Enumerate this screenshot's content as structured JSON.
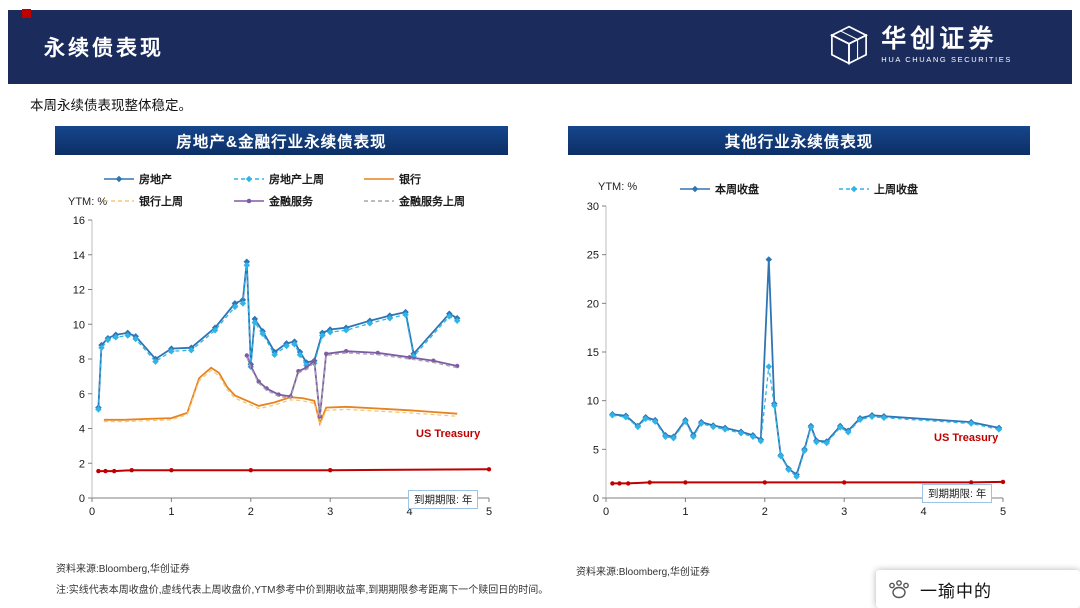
{
  "header": {
    "title": "永续债表现",
    "logo_cn": "华创证券",
    "logo_en": "HUA CHUANG SECURITIES"
  },
  "subtitle": "本周永续债表现整体稳定。",
  "panels": [
    {
      "title": "房地产&金融行业永续债表现",
      "source": "资料来源:Bloomberg,华创证券"
    },
    {
      "title": "其他行业永续债表现",
      "source": "资料来源:Bloomberg,华创证券"
    }
  ],
  "note": "注:实线代表本周收盘价,虚线代表上周收盘价,YTM参考中价到期收益率,到期期限参考距离下一个赎回日的时间。",
  "badge": {
    "name": "一瑜中的"
  },
  "colors": {
    "header_bg": "#1b2b5c",
    "panel_bg": "#0f3a7d",
    "accent_red": "#c00000",
    "this_week_blue": "#2e75b6",
    "last_week_cyan": "#30b4e8",
    "bank_orange": "#e8821e",
    "bank_last_yellow": "#f5c878",
    "finserv_purple": "#7d5ba6",
    "finserv_last_gray": "#a6a6a6"
  },
  "chart_data": [
    {
      "type": "line",
      "title": "房地产&金融行业永续债表现",
      "ylabel": "YTM: %",
      "xlabel": "到期期限: 年",
      "annotation": "US Treasury",
      "xlim": [
        0,
        5
      ],
      "ylim": [
        0,
        16
      ],
      "xticks": [
        0,
        1,
        2,
        3,
        4,
        5
      ],
      "yticks": [
        0,
        2,
        4,
        6,
        8,
        10,
        12,
        14,
        16
      ],
      "legend_position": "top",
      "grid": false,
      "series": [
        {
          "name": "房地产",
          "color": "#2e75b6",
          "dash": false,
          "marker": "diamond",
          "width": 1.8,
          "points": [
            [
              0.08,
              5.2
            ],
            [
              0.12,
              8.8
            ],
            [
              0.2,
              9.2
            ],
            [
              0.3,
              9.4
            ],
            [
              0.45,
              9.5
            ],
            [
              0.55,
              9.3
            ],
            [
              0.8,
              8.0
            ],
            [
              1.0,
              8.6
            ],
            [
              1.25,
              8.65
            ],
            [
              1.55,
              9.8
            ],
            [
              1.8,
              11.2
            ],
            [
              1.9,
              11.4
            ],
            [
              1.95,
              13.6
            ],
            [
              2.0,
              7.7
            ],
            [
              2.05,
              10.3
            ],
            [
              2.15,
              9.6
            ],
            [
              2.3,
              8.4
            ],
            [
              2.45,
              8.9
            ],
            [
              2.55,
              9.0
            ],
            [
              2.62,
              8.4
            ],
            [
              2.7,
              7.8
            ],
            [
              2.8,
              7.9
            ],
            [
              2.9,
              9.5
            ],
            [
              3.0,
              9.7
            ],
            [
              3.2,
              9.8
            ],
            [
              3.5,
              10.2
            ],
            [
              3.75,
              10.5
            ],
            [
              3.95,
              10.7
            ],
            [
              4.05,
              8.3
            ],
            [
              4.5,
              10.6
            ],
            [
              4.6,
              10.35
            ]
          ]
        },
        {
          "name": "房地产上周",
          "color": "#30b4e8",
          "dash": true,
          "marker": "diamond",
          "width": 1.3,
          "points": [
            [
              0.08,
              5.1
            ],
            [
              0.12,
              8.65
            ],
            [
              0.2,
              9.1
            ],
            [
              0.3,
              9.25
            ],
            [
              0.45,
              9.35
            ],
            [
              0.55,
              9.15
            ],
            [
              0.8,
              7.85
            ],
            [
              1.0,
              8.45
            ],
            [
              1.25,
              8.5
            ],
            [
              1.55,
              9.65
            ],
            [
              1.8,
              11.0
            ],
            [
              1.9,
              11.2
            ],
            [
              1.95,
              13.4
            ],
            [
              2.0,
              7.55
            ],
            [
              2.05,
              10.1
            ],
            [
              2.15,
              9.45
            ],
            [
              2.3,
              8.25
            ],
            [
              2.45,
              8.75
            ],
            [
              2.55,
              8.85
            ],
            [
              2.62,
              8.25
            ],
            [
              2.7,
              7.65
            ],
            [
              2.8,
              7.75
            ],
            [
              2.9,
              9.35
            ],
            [
              3.0,
              9.55
            ],
            [
              3.2,
              9.65
            ],
            [
              3.5,
              10.05
            ],
            [
              3.75,
              10.35
            ],
            [
              3.95,
              10.55
            ],
            [
              4.05,
              8.15
            ],
            [
              4.5,
              10.45
            ],
            [
              4.6,
              10.2
            ]
          ]
        },
        {
          "name": "银行",
          "color": "#e8821e",
          "dash": false,
          "marker": "none",
          "width": 1.8,
          "points": [
            [
              0.15,
              4.5
            ],
            [
              0.4,
              4.5
            ],
            [
              0.7,
              4.55
            ],
            [
              1.0,
              4.6
            ],
            [
              1.2,
              4.9
            ],
            [
              1.35,
              6.9
            ],
            [
              1.5,
              7.5
            ],
            [
              1.6,
              7.2
            ],
            [
              1.7,
              6.4
            ],
            [
              1.8,
              5.9
            ],
            [
              1.95,
              5.6
            ],
            [
              2.1,
              5.3
            ],
            [
              2.3,
              5.5
            ],
            [
              2.5,
              5.8
            ],
            [
              2.65,
              5.75
            ],
            [
              2.8,
              5.6
            ],
            [
              2.87,
              4.3
            ],
            [
              2.95,
              5.2
            ],
            [
              3.2,
              5.25
            ],
            [
              3.6,
              5.15
            ],
            [
              4.0,
              5.05
            ],
            [
              4.3,
              4.95
            ],
            [
              4.6,
              4.85
            ]
          ]
        },
        {
          "name": "银行上周",
          "color": "#f5c878",
          "dash": true,
          "marker": "none",
          "width": 1.3,
          "points": [
            [
              0.15,
              4.4
            ],
            [
              0.4,
              4.4
            ],
            [
              0.7,
              4.45
            ],
            [
              1.0,
              4.5
            ],
            [
              1.2,
              4.8
            ],
            [
              1.35,
              6.75
            ],
            [
              1.5,
              7.35
            ],
            [
              1.6,
              7.05
            ],
            [
              1.7,
              6.25
            ],
            [
              1.8,
              5.75
            ],
            [
              1.95,
              5.45
            ],
            [
              2.1,
              5.15
            ],
            [
              2.3,
              5.35
            ],
            [
              2.5,
              5.65
            ],
            [
              2.65,
              5.6
            ],
            [
              2.8,
              5.45
            ],
            [
              2.87,
              4.2
            ],
            [
              2.95,
              5.05
            ],
            [
              3.2,
              5.1
            ],
            [
              3.6,
              5.0
            ],
            [
              4.0,
              4.9
            ],
            [
              4.3,
              4.8
            ],
            [
              4.6,
              4.7
            ]
          ]
        },
        {
          "name": "金融服务",
          "color": "#7d5ba6",
          "dash": false,
          "marker": "circle",
          "width": 1.8,
          "points": [
            [
              1.95,
              8.2
            ],
            [
              2.0,
              7.6
            ],
            [
              2.1,
              6.7
            ],
            [
              2.2,
              6.3
            ],
            [
              2.35,
              5.95
            ],
            [
              2.5,
              5.85
            ],
            [
              2.6,
              7.3
            ],
            [
              2.7,
              7.5
            ],
            [
              2.8,
              7.9
            ],
            [
              2.87,
              4.7
            ],
            [
              2.95,
              8.3
            ],
            [
              3.2,
              8.45
            ],
            [
              3.6,
              8.35
            ],
            [
              4.0,
              8.1
            ],
            [
              4.3,
              7.9
            ],
            [
              4.6,
              7.6
            ]
          ]
        },
        {
          "name": "金融服务上周",
          "color": "#a6a6a6",
          "dash": true,
          "marker": "none",
          "width": 1.3,
          "points": [
            [
              1.95,
              8.1
            ],
            [
              2.0,
              7.5
            ],
            [
              2.1,
              6.6
            ],
            [
              2.2,
              6.2
            ],
            [
              2.35,
              5.85
            ],
            [
              2.5,
              5.75
            ],
            [
              2.6,
              7.2
            ],
            [
              2.7,
              7.4
            ],
            [
              2.8,
              7.8
            ],
            [
              2.87,
              4.6
            ],
            [
              2.95,
              8.2
            ],
            [
              3.2,
              8.35
            ],
            [
              3.6,
              8.25
            ],
            [
              4.0,
              8.0
            ],
            [
              4.3,
              7.8
            ],
            [
              4.6,
              7.5
            ]
          ]
        },
        {
          "name": "US Treasury",
          "color": "#c00000",
          "dash": false,
          "marker": "circle",
          "width": 2,
          "legend": false,
          "points": [
            [
              0.08,
              1.55
            ],
            [
              0.17,
              1.55
            ],
            [
              0.28,
              1.55
            ],
            [
              0.5,
              1.6
            ],
            [
              1.0,
              1.6
            ],
            [
              2.0,
              1.6
            ],
            [
              3.0,
              1.6
            ],
            [
              5.0,
              1.65
            ]
          ]
        }
      ]
    },
    {
      "type": "line",
      "title": "其他行业永续债表现",
      "ylabel": "YTM: %",
      "xlabel": "到期期限: 年",
      "annotation": "US Treasury",
      "xlim": [
        0,
        5
      ],
      "ylim": [
        0,
        30
      ],
      "xticks": [
        0,
        1,
        2,
        3,
        4,
        5
      ],
      "yticks": [
        0,
        5,
        10,
        15,
        20,
        25,
        30
      ],
      "legend_position": "top",
      "grid": false,
      "series": [
        {
          "name": "本周收盘",
          "color": "#2e75b6",
          "dash": false,
          "marker": "diamond",
          "width": 1.8,
          "points": [
            [
              0.08,
              8.6
            ],
            [
              0.25,
              8.45
            ],
            [
              0.4,
              7.4
            ],
            [
              0.5,
              8.3
            ],
            [
              0.62,
              8.0
            ],
            [
              0.75,
              6.45
            ],
            [
              0.85,
              6.3
            ],
            [
              1.0,
              8.0
            ],
            [
              1.1,
              6.45
            ],
            [
              1.2,
              7.8
            ],
            [
              1.35,
              7.45
            ],
            [
              1.5,
              7.2
            ],
            [
              1.7,
              6.8
            ],
            [
              1.85,
              6.45
            ],
            [
              1.95,
              6.0
            ],
            [
              2.05,
              24.5
            ],
            [
              2.12,
              9.7
            ],
            [
              2.2,
              4.4
            ],
            [
              2.3,
              3.0
            ],
            [
              2.4,
              2.4
            ],
            [
              2.5,
              5.0
            ],
            [
              2.58,
              7.4
            ],
            [
              2.65,
              5.9
            ],
            [
              2.78,
              5.8
            ],
            [
              2.95,
              7.4
            ],
            [
              3.05,
              6.9
            ],
            [
              3.2,
              8.2
            ],
            [
              3.35,
              8.5
            ],
            [
              3.5,
              8.4
            ],
            [
              4.6,
              7.8
            ],
            [
              4.95,
              7.2
            ]
          ]
        },
        {
          "name": "上周收盘",
          "color": "#30b4e8",
          "dash": true,
          "marker": "diamond",
          "width": 1.3,
          "points": [
            [
              0.08,
              8.5
            ],
            [
              0.25,
              8.3
            ],
            [
              0.4,
              7.3
            ],
            [
              0.5,
              8.15
            ],
            [
              0.62,
              7.85
            ],
            [
              0.75,
              6.3
            ],
            [
              0.85,
              6.15
            ],
            [
              1.0,
              7.85
            ],
            [
              1.1,
              6.3
            ],
            [
              1.2,
              7.65
            ],
            [
              1.35,
              7.3
            ],
            [
              1.5,
              7.05
            ],
            [
              1.7,
              6.65
            ],
            [
              1.85,
              6.3
            ],
            [
              1.95,
              5.85
            ],
            [
              2.05,
              13.5
            ],
            [
              2.12,
              9.5
            ],
            [
              2.2,
              4.3
            ],
            [
              2.3,
              2.9
            ],
            [
              2.4,
              2.2
            ],
            [
              2.5,
              4.85
            ],
            [
              2.58,
              7.25
            ],
            [
              2.65,
              5.75
            ],
            [
              2.78,
              5.65
            ],
            [
              2.95,
              7.25
            ],
            [
              3.05,
              6.75
            ],
            [
              3.2,
              8.05
            ],
            [
              3.35,
              8.35
            ],
            [
              3.5,
              8.25
            ],
            [
              4.6,
              7.65
            ],
            [
              4.95,
              7.05
            ]
          ]
        },
        {
          "name": "US Treasury",
          "color": "#c00000",
          "dash": false,
          "marker": "circle",
          "width": 2,
          "legend": false,
          "points": [
            [
              0.08,
              1.5
            ],
            [
              0.17,
              1.5
            ],
            [
              0.28,
              1.5
            ],
            [
              0.55,
              1.6
            ],
            [
              1.0,
              1.6
            ],
            [
              2.0,
              1.6
            ],
            [
              3.0,
              1.6
            ],
            [
              4.6,
              1.6
            ],
            [
              5.0,
              1.65
            ]
          ]
        }
      ]
    }
  ]
}
